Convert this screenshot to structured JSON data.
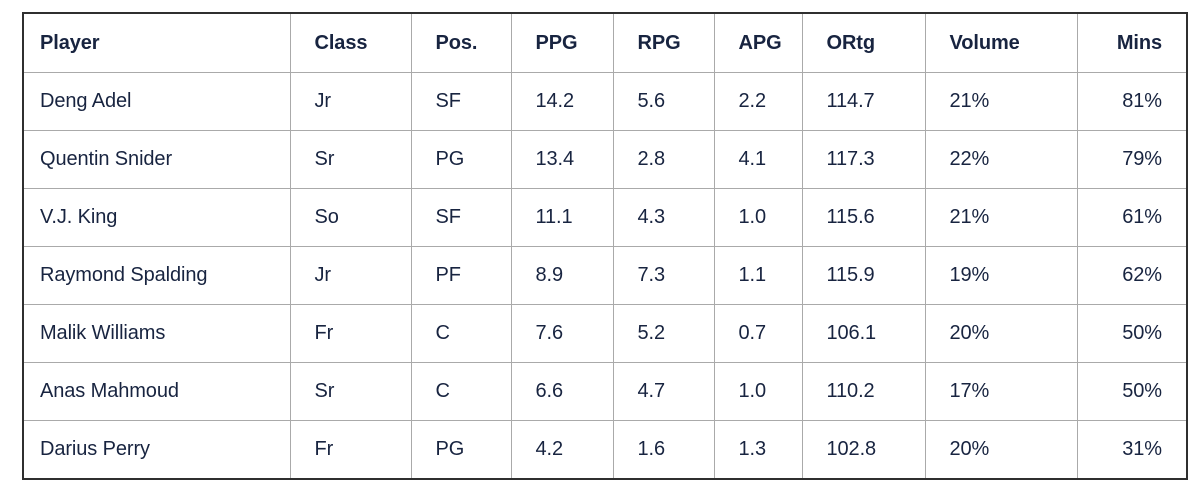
{
  "chart_data": {
    "type": "table",
    "title": "",
    "columns": [
      "Player",
      "Class",
      "Pos.",
      "PPG",
      "RPG",
      "APG",
      "ORtg",
      "Volume",
      "Mins"
    ],
    "rows": [
      [
        "Deng Adel",
        "Jr",
        "SF",
        "14.2",
        "5.6",
        "2.2",
        "114.7",
        "21%",
        "81%"
      ],
      [
        "Quentin Snider",
        "Sr",
        "PG",
        "13.4",
        "2.8",
        "4.1",
        "117.3",
        "22%",
        "79%"
      ],
      [
        "V.J. King",
        "So",
        "SF",
        "11.1",
        "4.3",
        "1.0",
        "115.6",
        "21%",
        "61%"
      ],
      [
        "Raymond Spalding",
        "Jr",
        "PF",
        "8.9",
        "7.3",
        "1.1",
        "115.9",
        "19%",
        "62%"
      ],
      [
        "Malik Williams",
        "Fr",
        "C",
        "7.6",
        "5.2",
        "0.7",
        "106.1",
        "20%",
        "50%"
      ],
      [
        "Anas Mahmoud",
        "Sr",
        "C",
        "6.6",
        "4.7",
        "1.0",
        "110.2",
        "17%",
        "50%"
      ],
      [
        "Darius Perry",
        "Fr",
        "PG",
        "4.2",
        "1.6",
        "1.3",
        "102.8",
        "20%",
        "31%"
      ]
    ]
  },
  "table": {
    "headers": {
      "player": "Player",
      "class": "Class",
      "pos": "Pos.",
      "ppg": "PPG",
      "rpg": "RPG",
      "apg": "APG",
      "ortg": "ORtg",
      "volume": "Volume",
      "mins": "Mins"
    },
    "rows": [
      [
        "Deng Adel",
        "Jr",
        "SF",
        "14.2",
        "5.6",
        "2.2",
        "114.7",
        "21%",
        "81%"
      ],
      [
        "Quentin Snider",
        "Sr",
        "PG",
        "13.4",
        "2.8",
        "4.1",
        "117.3",
        "22%",
        "79%"
      ],
      [
        "V.J. King",
        "So",
        "SF",
        "11.1",
        "4.3",
        "1.0",
        "115.6",
        "21%",
        "61%"
      ],
      [
        "Raymond Spalding",
        "Jr",
        "PF",
        "8.9",
        "7.3",
        "1.1",
        "115.9",
        "19%",
        "62%"
      ],
      [
        "Malik Williams",
        "Fr",
        "C",
        "7.6",
        "5.2",
        "0.7",
        "106.1",
        "20%",
        "50%"
      ],
      [
        "Anas Mahmoud",
        "Sr",
        "C",
        "6.6",
        "4.7",
        "1.0",
        "110.2",
        "17%",
        "50%"
      ],
      [
        "Darius Perry",
        "Fr",
        "PG",
        "4.2",
        "1.6",
        "1.3",
        "102.8",
        "20%",
        "31%"
      ]
    ]
  },
  "colors": {
    "text": "#182440",
    "grid_line": "#aaaaaa",
    "outer_border": "#2f2f2f",
    "background": "#ffffff"
  }
}
